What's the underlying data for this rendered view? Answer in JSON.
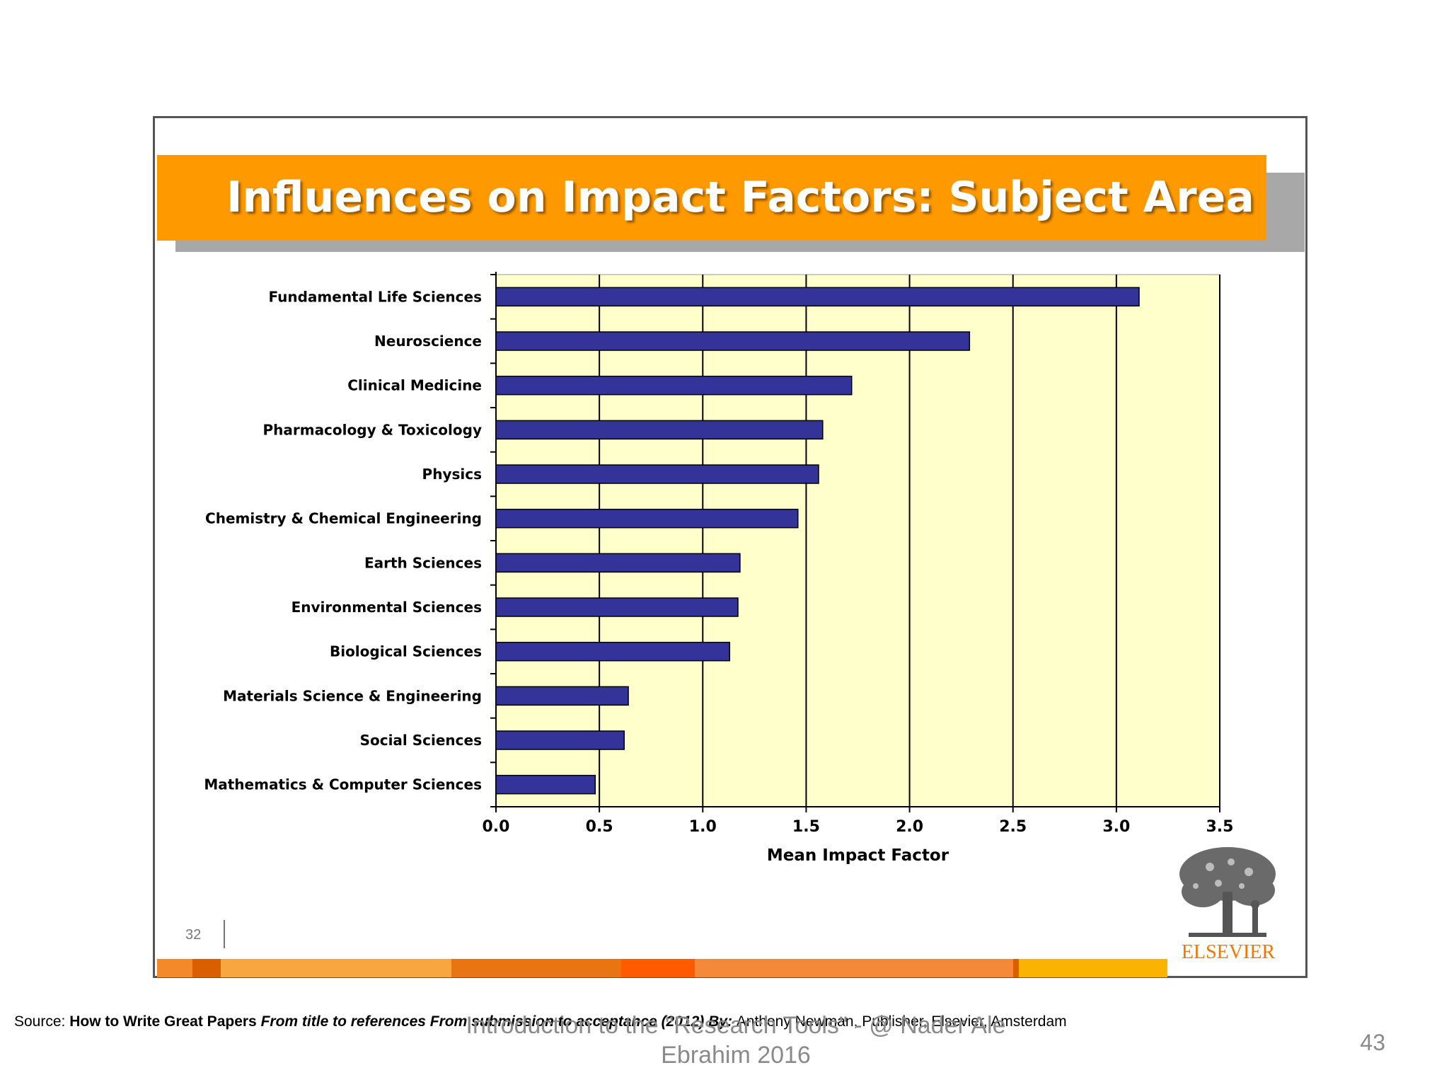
{
  "slide": {
    "title": "Influences on Impact Factors: Subject Area",
    "slide_number": "32",
    "logo_text": "ELSEVIER"
  },
  "chart_data": {
    "type": "bar",
    "orientation": "horizontal",
    "categories": [
      "Fundamental Life Sciences",
      "Neuroscience",
      "Clinical Medicine",
      "Pharmacology & Toxicology",
      "Physics",
      "Chemistry & Chemical Engineering",
      "Earth Sciences",
      "Environmental Sciences",
      "Biological Sciences",
      "Materials Science & Engineering",
      "Social Sciences",
      "Mathematics & Computer Sciences"
    ],
    "values": [
      3.11,
      2.29,
      1.72,
      1.58,
      1.56,
      1.46,
      1.18,
      1.17,
      1.13,
      0.64,
      0.62,
      0.48
    ],
    "xlabel": "Mean Impact Factor",
    "ylabel": "",
    "xlim": [
      0,
      3.5
    ],
    "xticks": [
      "0.0",
      "0.5",
      "1.0",
      "1.5",
      "2.0",
      "2.5",
      "3.0",
      "3.5"
    ],
    "grid": "vertical",
    "colors": {
      "bar": "#333399",
      "plot_background": "#ffffcc",
      "grid": "#000000"
    }
  },
  "colors": {
    "title_bar": "#ff9900",
    "title_shadow": "#a8a8a8",
    "logo": "#f07800",
    "footer_stripe": [
      "#f4892a",
      "#d95f00",
      "#f7a640",
      "#e87512",
      "#ff5a00",
      "#f5893a",
      "#d95f00",
      "#f9b300"
    ]
  },
  "footer": {
    "source_label": "Source: ",
    "source_title": "How to Write Great Papers ",
    "source_subtitle": "From title to references From submission to acceptance (2012) By: ",
    "source_rest": "Anthony Newman, Publisher, Elsevier, Amsterdam",
    "caption": "Introduction to the \"Research Tools\" - @ Nader Ale Ebrahim 2016",
    "page_number": "43"
  }
}
